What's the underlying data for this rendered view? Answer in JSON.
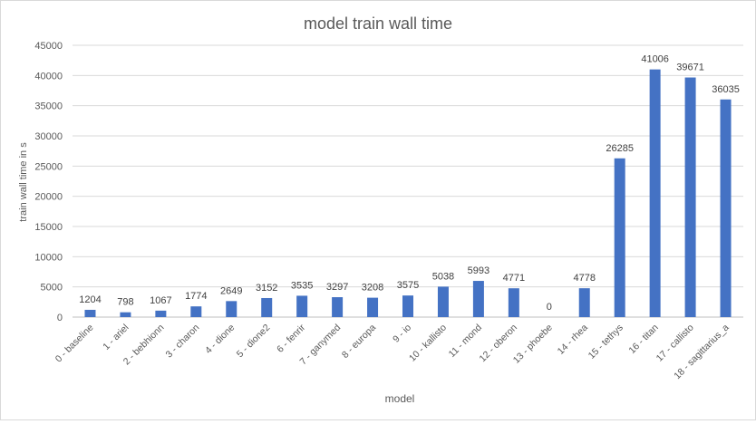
{
  "chart_data": {
    "type": "bar",
    "title": "model train wall time",
    "xlabel": "model",
    "ylabel": "train wall time in s",
    "ylim": [
      0,
      45000
    ],
    "yticks": [
      0,
      5000,
      10000,
      15000,
      20000,
      25000,
      30000,
      35000,
      40000,
      45000
    ],
    "grid": true,
    "legend": "none",
    "bar_color": "#4472c4",
    "categories": [
      "0 - baseline",
      "1 - ariel",
      "2 - bebhionn",
      "3 - charon",
      "4 - dione",
      "5 - dione2",
      "6 - fenrir",
      "7 - ganymed",
      "8 - europa",
      "9 - io",
      "10 - kallisto",
      "11 - mond",
      "12 - oberon",
      "13 - phoebe",
      "14 - rhea",
      "15 - tethys",
      "16 - titan",
      "17 - callisto",
      "18 - sagittarius_a"
    ],
    "values": [
      1204,
      798,
      1067,
      1774,
      2649,
      3152,
      3535,
      3297,
      3208,
      3575,
      5038,
      5993,
      4771,
      0,
      4778,
      26285,
      41006,
      39671,
      36035
    ]
  }
}
